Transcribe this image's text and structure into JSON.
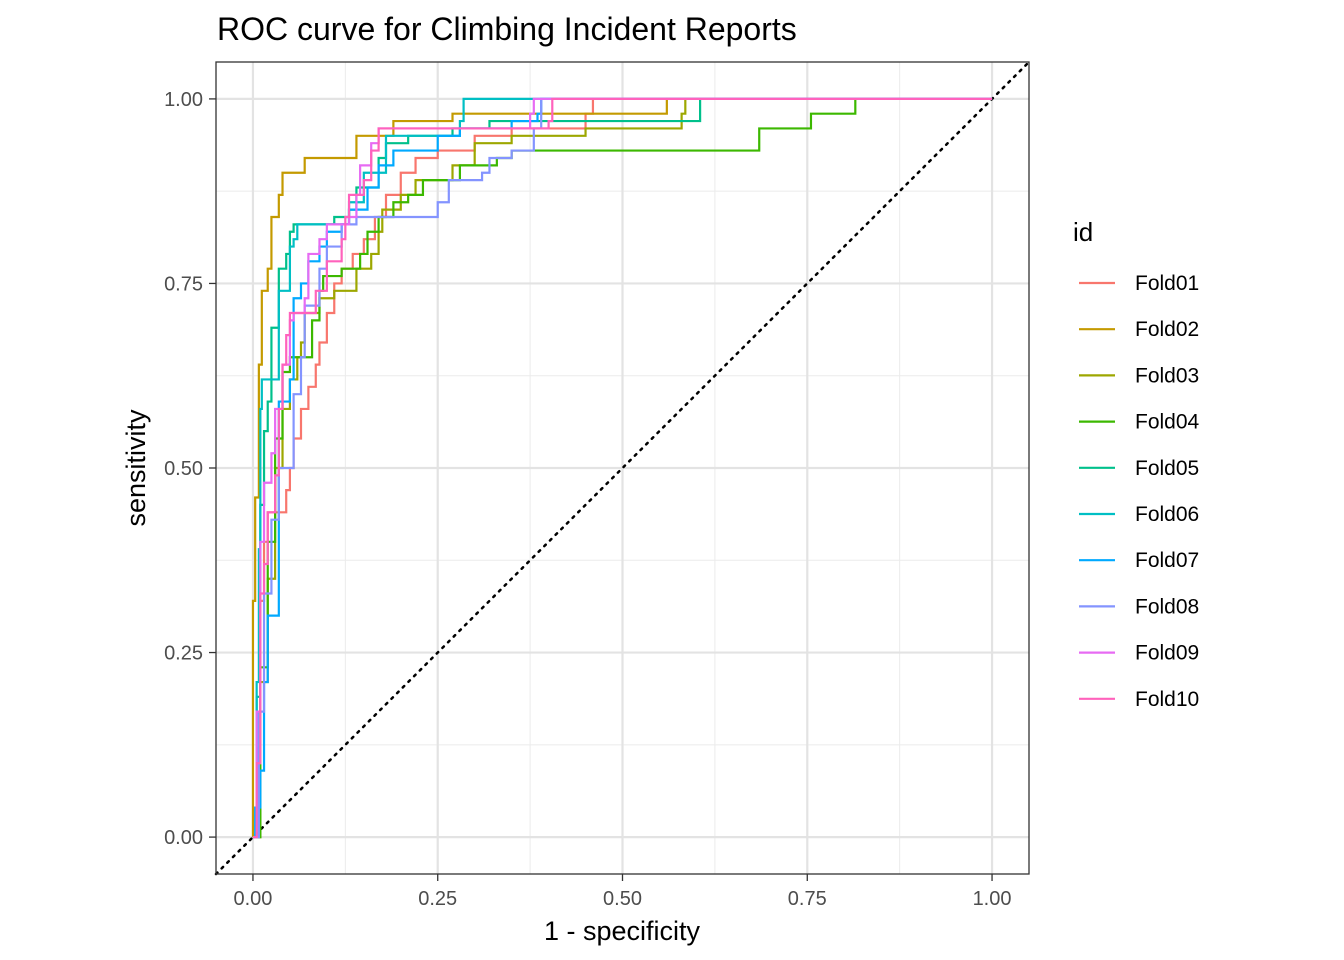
{
  "chart_data": {
    "type": "line",
    "title": "ROC curve for Climbing Incident Reports",
    "xlabel": "1 - specificity",
    "ylabel": "sensitivity",
    "xlim": [
      -0.05,
      1.05
    ],
    "ylim": [
      -0.05,
      1.05
    ],
    "x_ticks": [
      "0.00",
      "0.25",
      "0.50",
      "0.75",
      "1.00"
    ],
    "y_ticks": [
      "0.00",
      "0.25",
      "0.50",
      "0.75",
      "1.00"
    ],
    "grid": true,
    "legend": {
      "title": "id",
      "position": "right"
    },
    "reference_line": {
      "style": "dotted",
      "from": [
        0,
        0
      ],
      "to": [
        1,
        1
      ]
    },
    "series": [
      {
        "name": "Fold01",
        "color": "#F8766D",
        "points": [
          [
            0,
            0
          ],
          [
            0.005,
            0.12
          ],
          [
            0.01,
            0.32
          ],
          [
            0.015,
            0.4
          ],
          [
            0.02,
            0.44
          ],
          [
            0.04,
            0.44
          ],
          [
            0.045,
            0.47
          ],
          [
            0.05,
            0.5
          ],
          [
            0.055,
            0.54
          ],
          [
            0.065,
            0.58
          ],
          [
            0.075,
            0.61
          ],
          [
            0.085,
            0.64
          ],
          [
            0.09,
            0.67
          ],
          [
            0.1,
            0.71
          ],
          [
            0.11,
            0.75
          ],
          [
            0.12,
            0.77
          ],
          [
            0.135,
            0.79
          ],
          [
            0.15,
            0.81
          ],
          [
            0.165,
            0.84
          ],
          [
            0.18,
            0.87
          ],
          [
            0.2,
            0.9
          ],
          [
            0.22,
            0.92
          ],
          [
            0.25,
            0.93
          ],
          [
            0.3,
            0.95
          ],
          [
            0.35,
            0.96
          ],
          [
            0.45,
            0.98
          ],
          [
            0.46,
            1.0
          ],
          [
            1,
            1
          ]
        ]
      },
      {
        "name": "Fold02",
        "color": "#C49A00",
        "points": [
          [
            0,
            0
          ],
          [
            0,
            0.32
          ],
          [
            0.003,
            0.46
          ],
          [
            0.008,
            0.64
          ],
          [
            0.012,
            0.74
          ],
          [
            0.02,
            0.77
          ],
          [
            0.025,
            0.84
          ],
          [
            0.035,
            0.87
          ],
          [
            0.04,
            0.9
          ],
          [
            0.065,
            0.9
          ],
          [
            0.07,
            0.92
          ],
          [
            0.13,
            0.92
          ],
          [
            0.14,
            0.95
          ],
          [
            0.19,
            0.97
          ],
          [
            0.27,
            0.98
          ],
          [
            0.4,
            0.98
          ],
          [
            0.555,
            0.98
          ],
          [
            0.56,
            1.0
          ],
          [
            1,
            1
          ]
        ]
      },
      {
        "name": "Fold03",
        "color": "#9DA700",
        "points": [
          [
            0,
            0
          ],
          [
            0.01,
            0.21
          ],
          [
            0.02,
            0.35
          ],
          [
            0.03,
            0.5
          ],
          [
            0.04,
            0.58
          ],
          [
            0.05,
            0.62
          ],
          [
            0.06,
            0.65
          ],
          [
            0.065,
            0.67
          ],
          [
            0.07,
            0.71
          ],
          [
            0.09,
            0.73
          ],
          [
            0.11,
            0.74
          ],
          [
            0.135,
            0.74
          ],
          [
            0.14,
            0.77
          ],
          [
            0.16,
            0.79
          ],
          [
            0.17,
            0.82
          ],
          [
            0.175,
            0.85
          ],
          [
            0.2,
            0.87
          ],
          [
            0.22,
            0.89
          ],
          [
            0.27,
            0.91
          ],
          [
            0.3,
            0.94
          ],
          [
            0.35,
            0.95
          ],
          [
            0.45,
            0.96
          ],
          [
            0.58,
            0.98
          ],
          [
            0.585,
            1.0
          ],
          [
            1,
            1
          ]
        ]
      },
      {
        "name": "Fold04",
        "color": "#3CB800",
        "points": [
          [
            0,
            0
          ],
          [
            0.01,
            0.23
          ],
          [
            0.02,
            0.4
          ],
          [
            0.03,
            0.54
          ],
          [
            0.04,
            0.63
          ],
          [
            0.05,
            0.65
          ],
          [
            0.08,
            0.7
          ],
          [
            0.09,
            0.74
          ],
          [
            0.095,
            0.76
          ],
          [
            0.12,
            0.77
          ],
          [
            0.145,
            0.79
          ],
          [
            0.155,
            0.82
          ],
          [
            0.17,
            0.84
          ],
          [
            0.19,
            0.86
          ],
          [
            0.21,
            0.87
          ],
          [
            0.23,
            0.89
          ],
          [
            0.26,
            0.89
          ],
          [
            0.28,
            0.91
          ],
          [
            0.33,
            0.92
          ],
          [
            0.35,
            0.93
          ],
          [
            0.68,
            0.93
          ],
          [
            0.685,
            0.96
          ],
          [
            0.75,
            0.96
          ],
          [
            0.755,
            0.98
          ],
          [
            0.81,
            0.98
          ],
          [
            0.815,
            1.0
          ],
          [
            1,
            1
          ]
        ]
      },
      {
        "name": "Fold05",
        "color": "#00C08B",
        "points": [
          [
            0,
            0
          ],
          [
            0.005,
            0.19
          ],
          [
            0.01,
            0.45
          ],
          [
            0.015,
            0.55
          ],
          [
            0.02,
            0.59
          ],
          [
            0.025,
            0.69
          ],
          [
            0.035,
            0.77
          ],
          [
            0.045,
            0.79
          ],
          [
            0.05,
            0.82
          ],
          [
            0.055,
            0.83
          ],
          [
            0.11,
            0.84
          ],
          [
            0.13,
            0.85
          ],
          [
            0.14,
            0.88
          ],
          [
            0.17,
            0.92
          ],
          [
            0.18,
            0.94
          ],
          [
            0.21,
            0.95
          ],
          [
            0.27,
            0.96
          ],
          [
            0.32,
            0.97
          ],
          [
            0.45,
            0.97
          ],
          [
            0.6,
            0.97
          ],
          [
            0.605,
            1.0
          ],
          [
            1,
            1
          ]
        ]
      },
      {
        "name": "Fold06",
        "color": "#00BFC4",
        "points": [
          [
            0,
            0
          ],
          [
            0.005,
            0.21
          ],
          [
            0.008,
            0.39
          ],
          [
            0.01,
            0.58
          ],
          [
            0.012,
            0.62
          ],
          [
            0.03,
            0.62
          ],
          [
            0.035,
            0.74
          ],
          [
            0.05,
            0.8
          ],
          [
            0.055,
            0.81
          ],
          [
            0.06,
            0.83
          ],
          [
            0.13,
            0.86
          ],
          [
            0.15,
            0.9
          ],
          [
            0.18,
            0.95
          ],
          [
            0.28,
            0.97
          ],
          [
            0.285,
            1.0
          ],
          [
            1,
            1
          ]
        ]
      },
      {
        "name": "Fold07",
        "color": "#00A9FF",
        "points": [
          [
            0,
            0
          ],
          [
            0.003,
            0.04
          ],
          [
            0.01,
            0.09
          ],
          [
            0.015,
            0.21
          ],
          [
            0.02,
            0.3
          ],
          [
            0.03,
            0.3
          ],
          [
            0.035,
            0.59
          ],
          [
            0.05,
            0.62
          ],
          [
            0.055,
            0.73
          ],
          [
            0.065,
            0.75
          ],
          [
            0.075,
            0.78
          ],
          [
            0.09,
            0.8
          ],
          [
            0.1,
            0.82
          ],
          [
            0.12,
            0.83
          ],
          [
            0.13,
            0.85
          ],
          [
            0.155,
            0.88
          ],
          [
            0.17,
            0.91
          ],
          [
            0.19,
            0.93
          ],
          [
            0.25,
            0.95
          ],
          [
            0.28,
            0.96
          ],
          [
            0.35,
            0.97
          ],
          [
            0.385,
            0.98
          ],
          [
            0.39,
            1.0
          ],
          [
            1,
            1
          ]
        ]
      },
      {
        "name": "Fold08",
        "color": "#8494FF",
        "points": [
          [
            0,
            0
          ],
          [
            0.008,
            0.17
          ],
          [
            0.015,
            0.33
          ],
          [
            0.025,
            0.43
          ],
          [
            0.035,
            0.5
          ],
          [
            0.05,
            0.5
          ],
          [
            0.055,
            0.6
          ],
          [
            0.065,
            0.65
          ],
          [
            0.07,
            0.72
          ],
          [
            0.09,
            0.77
          ],
          [
            0.1,
            0.8
          ],
          [
            0.12,
            0.83
          ],
          [
            0.14,
            0.84
          ],
          [
            0.24,
            0.84
          ],
          [
            0.25,
            0.86
          ],
          [
            0.26,
            0.86
          ],
          [
            0.265,
            0.89
          ],
          [
            0.31,
            0.9
          ],
          [
            0.32,
            0.92
          ],
          [
            0.35,
            0.93
          ],
          [
            0.38,
            0.96
          ],
          [
            0.39,
            1.0
          ],
          [
            1,
            1
          ]
        ]
      },
      {
        "name": "Fold09",
        "color": "#E76BF3",
        "points": [
          [
            0,
            0
          ],
          [
            0.005,
            0.17
          ],
          [
            0.01,
            0.4
          ],
          [
            0.015,
            0.48
          ],
          [
            0.025,
            0.52
          ],
          [
            0.03,
            0.58
          ],
          [
            0.04,
            0.64
          ],
          [
            0.05,
            0.7
          ],
          [
            0.055,
            0.71
          ],
          [
            0.07,
            0.73
          ],
          [
            0.075,
            0.79
          ],
          [
            0.09,
            0.81
          ],
          [
            0.1,
            0.83
          ],
          [
            0.13,
            0.84
          ],
          [
            0.14,
            0.87
          ],
          [
            0.145,
            0.91
          ],
          [
            0.16,
            0.94
          ],
          [
            0.17,
            0.96
          ],
          [
            0.3,
            0.96
          ],
          [
            0.35,
            0.96
          ],
          [
            0.375,
            0.98
          ],
          [
            0.38,
            1.0
          ],
          [
            1,
            1
          ]
        ]
      },
      {
        "name": "Fold10",
        "color": "#FF62BC",
        "points": [
          [
            0,
            0
          ],
          [
            0.005,
            0.1
          ],
          [
            0.01,
            0.33
          ],
          [
            0.015,
            0.37
          ],
          [
            0.02,
            0.44
          ],
          [
            0.03,
            0.49
          ],
          [
            0.035,
            0.58
          ],
          [
            0.04,
            0.64
          ],
          [
            0.045,
            0.68
          ],
          [
            0.05,
            0.71
          ],
          [
            0.08,
            0.71
          ],
          [
            0.085,
            0.74
          ],
          [
            0.1,
            0.78
          ],
          [
            0.12,
            0.81
          ],
          [
            0.125,
            0.84
          ],
          [
            0.13,
            0.87
          ],
          [
            0.15,
            0.89
          ],
          [
            0.16,
            0.93
          ],
          [
            0.17,
            0.96
          ],
          [
            0.34,
            0.96
          ],
          [
            0.4,
            0.97
          ],
          [
            0.405,
            1.0
          ],
          [
            1,
            1
          ]
        ]
      }
    ]
  }
}
